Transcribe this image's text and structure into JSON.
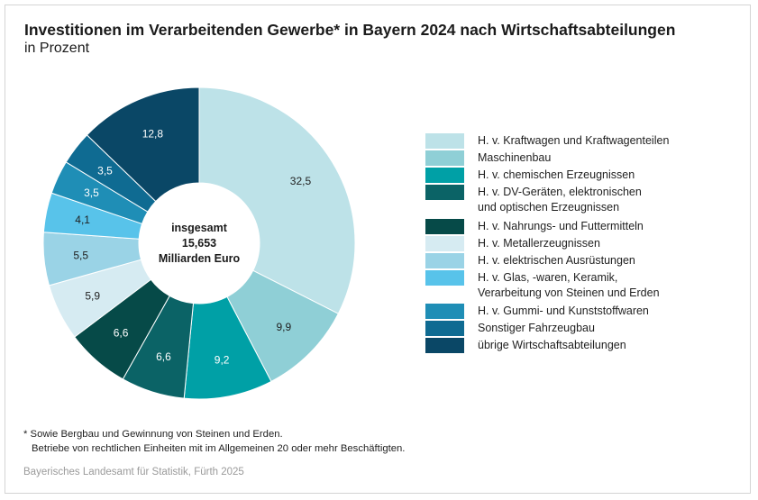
{
  "chart_data": {
    "type": "pie",
    "variant": "donut",
    "title": "Investitionen im Verarbeitenden Gewerbe* in Bayern 2024 nach Wirtschaftsabteilungen",
    "subtitle": "in Prozent",
    "center_label": [
      "insgesamt",
      "15,653",
      "Milliarden Euro"
    ],
    "unit": "%",
    "legend_position": "right",
    "slices": [
      {
        "label": "H. v. Kraftwagen und Kraftwagenteilen",
        "value": 32.5,
        "value_label": "32,5",
        "color": "#bde2e8",
        "text_color": "#1f1f1f"
      },
      {
        "label": "Maschinenbau",
        "value": 9.9,
        "value_label": "9,9",
        "color": "#8fcfd6",
        "text_color": "#1f1f1f"
      },
      {
        "label": "H. v. chemischen Erzeugnissen",
        "value": 9.2,
        "value_label": "9,2",
        "color": "#00a0a6",
        "text_color": "#ffffff"
      },
      {
        "label": "H. v. DV-Geräten, elektronischen\nund optischen Erzeugnissen",
        "value": 6.6,
        "value_label": "6,6",
        "color": "#0b6366",
        "text_color": "#ffffff"
      },
      {
        "label": "H. v. Nahrungs- und Futtermitteln",
        "value": 6.6,
        "value_label": "6,6",
        "color": "#064a48",
        "text_color": "#ffffff"
      },
      {
        "label": "H. v. Metallerzeugnissen",
        "value": 5.9,
        "value_label": "5,9",
        "color": "#d6ebf2",
        "text_color": "#1f1f1f"
      },
      {
        "label": "H. v. elektrischen Ausrüstungen",
        "value": 5.5,
        "value_label": "5,5",
        "color": "#9ad3e6",
        "text_color": "#1f1f1f"
      },
      {
        "label": "H. v. Glas, -waren, Keramik,\nVerarbeitung von Steinen und Erden",
        "value": 4.1,
        "value_label": "4,1",
        "color": "#58c3ea",
        "text_color": "#1f1f1f"
      },
      {
        "label": "H. v. Gummi- und Kunststoffwaren",
        "value": 3.5,
        "value_label": "3,5",
        "color": "#1f8eb6",
        "text_color": "#ffffff"
      },
      {
        "label": "Sonstiger Fahrzeugbau",
        "value": 3.5,
        "value_label": "3,5",
        "color": "#0f6b92",
        "text_color": "#ffffff"
      },
      {
        "label": "übrige Wirtschaftsabteilungen",
        "value": 12.8,
        "value_label": "12,8",
        "color": "#0a4766",
        "text_color": "#ffffff"
      }
    ]
  },
  "footnote": {
    "line1": "* Sowie Bergbau und Gewinnung von Steinen und Erden.",
    "line2": "Betriebe von rechtlichen Einheiten mit im Allgemeinen 20 oder mehr Beschäftigten."
  },
  "source": "Bayerisches Landesamt für Statistik, Fürth 2025"
}
